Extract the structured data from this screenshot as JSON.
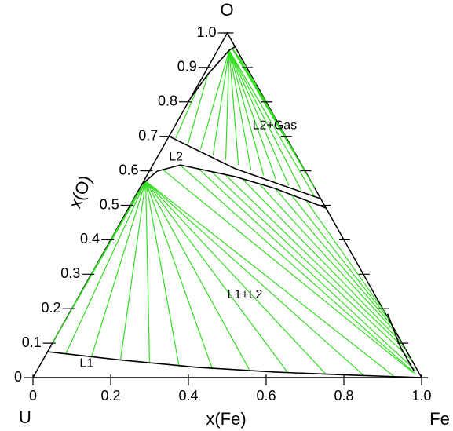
{
  "chart_data": {
    "type": "ternary",
    "corner_labels": {
      "top": "O",
      "left": "U",
      "right": "Fe"
    },
    "x_label": "x(Fe)",
    "y_label": "x(O)",
    "xlim": [
      0,
      1
    ],
    "ylim": [
      0,
      1
    ],
    "xticks": [
      0,
      0.2,
      0.4,
      0.6,
      0.8,
      {
        "value": 1,
        "label": "1.0"
      }
    ],
    "yticks": [
      0,
      0.1,
      0.2,
      0.3,
      0.4,
      0.5,
      0.6,
      0.7,
      0.8,
      0.9,
      {
        "value": 1,
        "label": "1.0"
      }
    ],
    "regions": [
      {
        "label": "L2+Gas",
        "x": 0.2,
        "y": 0.73
      },
      {
        "label": "L2",
        "x": 0.03,
        "y": 0.64
      },
      {
        "label": "L1+L2",
        "x": 0.38,
        "y": 0.24
      },
      {
        "label": "L1",
        "x": 0.1,
        "y": 0.04
      }
    ],
    "boundary_color": "#000000",
    "boundaries": [
      {
        "x": [
          0,
          0.192,
          0.405,
          0.614,
          0.821,
          1
        ],
        "y": [
          0.075,
          0.052,
          0.03,
          0.016,
          0.007,
          0
        ]
      },
      {
        "x": [
          0,
          0.02,
          0.071,
          0.229,
          0.348,
          0.508
        ],
        "y": [
          0.56,
          0.599,
          0.617,
          0.583,
          0.549,
          0.492
        ]
      },
      {
        "x": [
          0,
          0.218,
          0.481
        ],
        "y": [
          0.7,
          0.606,
          0.519
        ]
      },
      {
        "x": [
          0,
          0.01,
          0.03,
          0.04
        ],
        "y": [
          0.81,
          0.88,
          0.95,
          0.96
        ]
      },
      {
        "x": [
          0.82,
          0.9,
          0.97
        ],
        "y": [
          0.185,
          0.09,
          0.02
        ]
      }
    ],
    "tie_line_color": "#33dd22",
    "tie_lines": [
      [
        0.005,
        0.57,
        0,
        0.1
      ],
      [
        0.005,
        0.57,
        0,
        0.2
      ],
      [
        0.005,
        0.57,
        0,
        0.3
      ],
      [
        0.005,
        0.57,
        0,
        0.4
      ],
      [
        0.005,
        0.57,
        0,
        0.5
      ],
      [
        0.005,
        0.57,
        0.05,
        0.068
      ],
      [
        0.005,
        0.57,
        0.12,
        0.062
      ],
      [
        0.005,
        0.57,
        0.2,
        0.05
      ],
      [
        0.005,
        0.57,
        0.28,
        0.04
      ],
      [
        0.005,
        0.57,
        0.36,
        0.032
      ],
      [
        0.005,
        0.57,
        0.45,
        0.024
      ],
      [
        0.005,
        0.57,
        0.55,
        0.018
      ],
      [
        0.005,
        0.57,
        0.65,
        0.013
      ],
      [
        0.005,
        0.57,
        0.75,
        0.009
      ],
      [
        0.005,
        0.57,
        0.85,
        0.005
      ],
      [
        0.005,
        0.57,
        0.93,
        0.002
      ],
      [
        0.03,
        0.605,
        0.97,
        0.015
      ],
      [
        0.07,
        0.617,
        0.98,
        0.01
      ],
      [
        0.12,
        0.608,
        0.975,
        0.02
      ],
      [
        0.16,
        0.598,
        0.95,
        0.05
      ],
      [
        0.2,
        0.589,
        0.92,
        0.08
      ],
      [
        0.25,
        0.577,
        0.9,
        0.1
      ],
      [
        0.3,
        0.563,
        0.87,
        0.13
      ],
      [
        0.35,
        0.548,
        0.85,
        0.15
      ],
      [
        0.4,
        0.53,
        0.83,
        0.17
      ],
      [
        0.45,
        0.51,
        0.81,
        0.19
      ],
      [
        0.005,
        0.83,
        0.02,
        0.692
      ],
      [
        0.01,
        0.88,
        0.06,
        0.677
      ],
      [
        0.03,
        0.95,
        0.1,
        0.662
      ],
      [
        0.03,
        0.95,
        0.14,
        0.647
      ],
      [
        0.03,
        0.95,
        0.18,
        0.632
      ],
      [
        0.03,
        0.95,
        0.22,
        0.617
      ],
      [
        0.03,
        0.95,
        0.26,
        0.602
      ],
      [
        0.03,
        0.95,
        0.3,
        0.587
      ],
      [
        0.03,
        0.95,
        0.34,
        0.572
      ],
      [
        0.03,
        0.95,
        0.38,
        0.557
      ],
      [
        0.03,
        0.95,
        0.42,
        0.542
      ],
      [
        0.03,
        0.95,
        0.46,
        0.527
      ],
      [
        0.035,
        0.955,
        0.45,
        0.55
      ],
      [
        0.035,
        0.955,
        0.4,
        0.6
      ],
      [
        0.035,
        0.955,
        0.35,
        0.65
      ],
      [
        0.035,
        0.955,
        0.3,
        0.7
      ],
      [
        0.035,
        0.955,
        0.25,
        0.75
      ],
      [
        0.035,
        0.955,
        0.2,
        0.8
      ],
      [
        0.035,
        0.955,
        0.15,
        0.85
      ],
      [
        0.035,
        0.955,
        0.1,
        0.9
      ]
    ]
  }
}
